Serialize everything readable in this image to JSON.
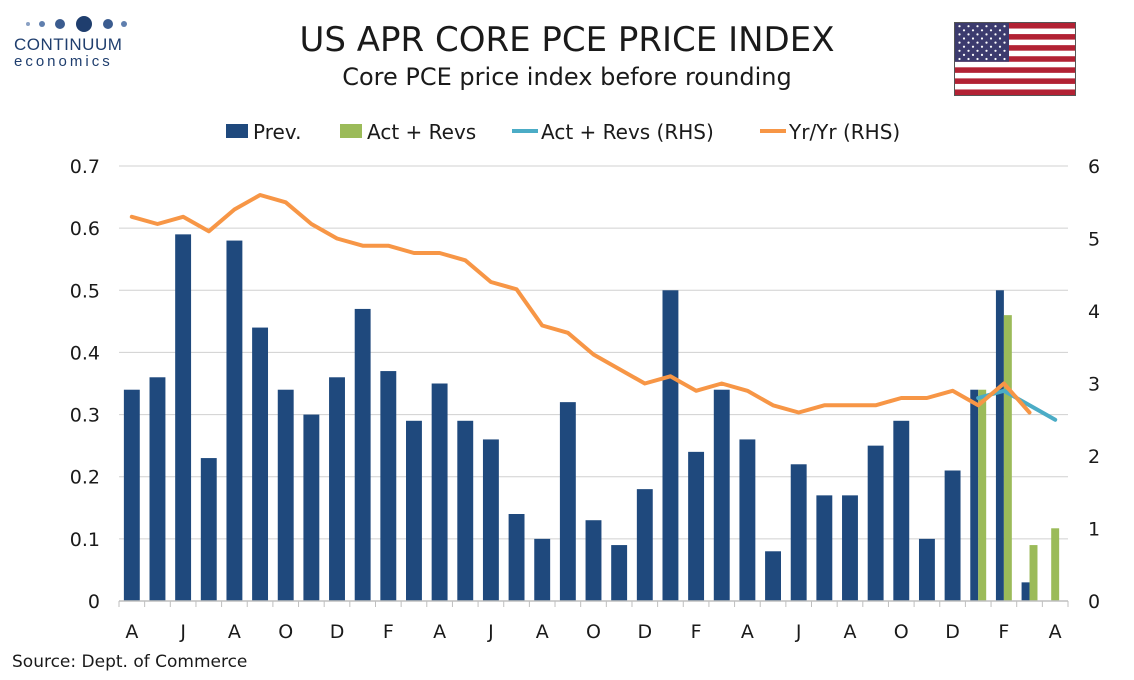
{
  "logo": {
    "name": "CONTINUUM",
    "sub": "economics"
  },
  "title": "US APR CORE PCE PRICE INDEX",
  "subtitle": "Core PCE price index before rounding",
  "source": "Source: Dept. of Commerce",
  "colors": {
    "prev": "#1f497d",
    "act": "#9bbb59",
    "act_line": "#4bacc6",
    "yoy": "#f79646",
    "grid": "#d0d0d0"
  },
  "chart_data": {
    "type": "bar",
    "legend": [
      "Prev.",
      "Act + Revs",
      "Act + Revs (RHS)",
      "Yr/Yr (RHS)"
    ],
    "legend_position": "top",
    "grid": true,
    "x_tick_labels": [
      "A",
      "J",
      "A",
      "O",
      "D",
      "F",
      "A",
      "J",
      "A",
      "O",
      "D",
      "F",
      "A",
      "J",
      "A",
      "O",
      "D",
      "F",
      "A"
    ],
    "y_left": {
      "range": [
        0,
        0.7
      ],
      "ticks": [
        "0",
        "0.1",
        "0.2",
        "0.3",
        "0.4",
        "0.5",
        "0.6",
        "0.7"
      ]
    },
    "y_right": {
      "range": [
        0,
        6
      ],
      "ticks": [
        "0",
        "1",
        "2",
        "3",
        "4",
        "5",
        "6"
      ]
    },
    "series": [
      {
        "name": "Prev.",
        "axis": "left",
        "type": "bar",
        "values": [
          0.34,
          0.36,
          0.59,
          0.23,
          0.58,
          0.44,
          0.34,
          0.3,
          0.36,
          0.47,
          0.37,
          0.29,
          0.35,
          0.29,
          0.26,
          0.14,
          0.1,
          0.32,
          0.13,
          0.09,
          0.18,
          0.5,
          0.24,
          0.34,
          0.26,
          0.08,
          0.22,
          0.17,
          0.17,
          0.25,
          0.29,
          0.1,
          0.21,
          0.34,
          0.5,
          0.03,
          null
        ]
      },
      {
        "name": "Act + Revs",
        "axis": "left",
        "type": "bar",
        "values": [
          null,
          null,
          null,
          null,
          null,
          null,
          null,
          null,
          null,
          null,
          null,
          null,
          null,
          null,
          null,
          null,
          null,
          null,
          null,
          null,
          null,
          null,
          null,
          null,
          null,
          null,
          null,
          null,
          null,
          null,
          null,
          null,
          null,
          0.34,
          0.46,
          0.09,
          0.117
        ]
      },
      {
        "name": "Act + Revs (RHS)",
        "axis": "right",
        "type": "line",
        "values": [
          null,
          null,
          null,
          null,
          null,
          null,
          null,
          null,
          null,
          null,
          null,
          null,
          null,
          null,
          null,
          null,
          null,
          null,
          null,
          null,
          null,
          null,
          null,
          null,
          null,
          null,
          null,
          null,
          null,
          null,
          null,
          null,
          null,
          2.8,
          2.9,
          2.7,
          2.5
        ]
      },
      {
        "name": "Yr/Yr (RHS)",
        "axis": "right",
        "type": "line",
        "values": [
          5.3,
          5.2,
          5.3,
          5.1,
          5.4,
          5.6,
          5.5,
          5.2,
          5.0,
          4.9,
          4.9,
          4.8,
          4.8,
          4.7,
          4.4,
          4.3,
          3.8,
          3.7,
          3.4,
          3.2,
          3.0,
          3.1,
          2.9,
          3.0,
          2.9,
          2.7,
          2.6,
          2.7,
          2.7,
          2.7,
          2.8,
          2.8,
          2.9,
          2.7,
          3.0,
          2.6,
          null
        ]
      }
    ]
  }
}
